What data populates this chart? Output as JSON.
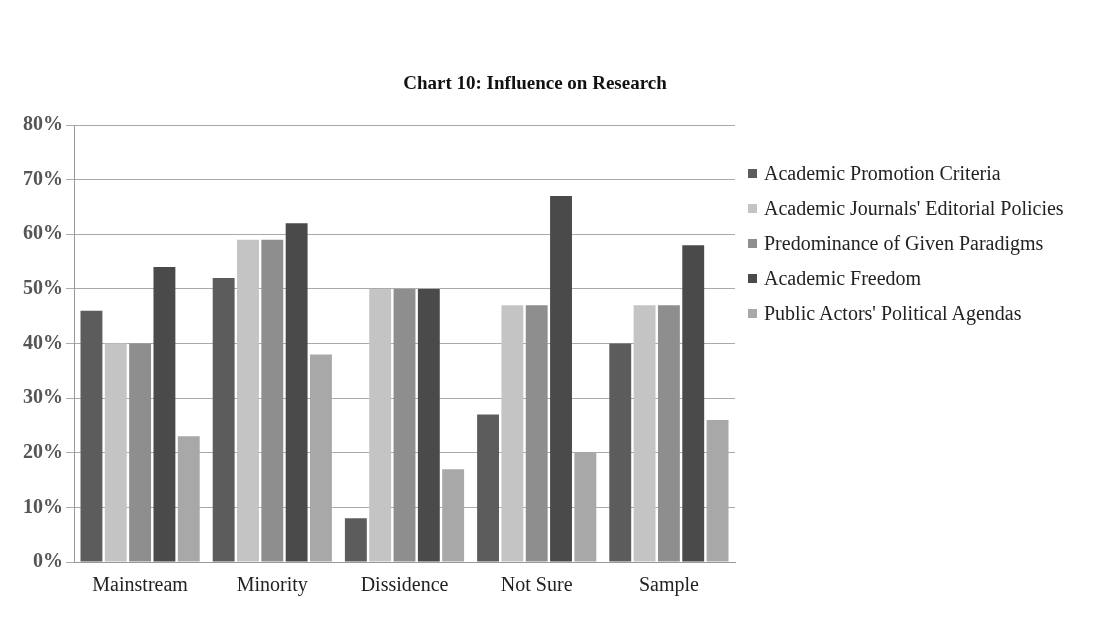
{
  "chart_data": {
    "type": "bar",
    "title": "Chart 10: Influence on Research",
    "categories": [
      "Mainstream",
      "Minority",
      "Dissidence",
      "Not Sure",
      "Sample"
    ],
    "series": [
      {
        "name": "Academic Promotion Criteria",
        "color": "#5c5c5c",
        "values": [
          46,
          52,
          8,
          27,
          40
        ]
      },
      {
        "name": "Academic Journals' Editorial Policies",
        "color": "#c4c4c4",
        "values": [
          40,
          59,
          50,
          47,
          47
        ]
      },
      {
        "name": "Predominance of Given Paradigms",
        "color": "#8e8e8e",
        "values": [
          40,
          59,
          50,
          47,
          47
        ]
      },
      {
        "name": "Academic Freedom",
        "color": "#4a4a4a",
        "values": [
          54,
          62,
          50,
          67,
          58
        ]
      },
      {
        "name": "Public Actors' Political Agendas",
        "color": "#a8a8a8",
        "values": [
          23,
          38,
          17,
          20,
          26
        ]
      }
    ],
    "ylim": [
      0,
      80
    ],
    "yticks": [
      {
        "value": 0,
        "label": "0%"
      },
      {
        "value": 10,
        "label": "10%"
      },
      {
        "value": 20,
        "label": "20%"
      },
      {
        "value": 30,
        "label": "30%"
      },
      {
        "value": 40,
        "label": "40%"
      },
      {
        "value": 50,
        "label": "50%"
      },
      {
        "value": 60,
        "label": "60%"
      },
      {
        "value": 70,
        "label": "70%"
      },
      {
        "value": 80,
        "label": "80%"
      }
    ],
    "grid": "y",
    "legend": "right"
  }
}
